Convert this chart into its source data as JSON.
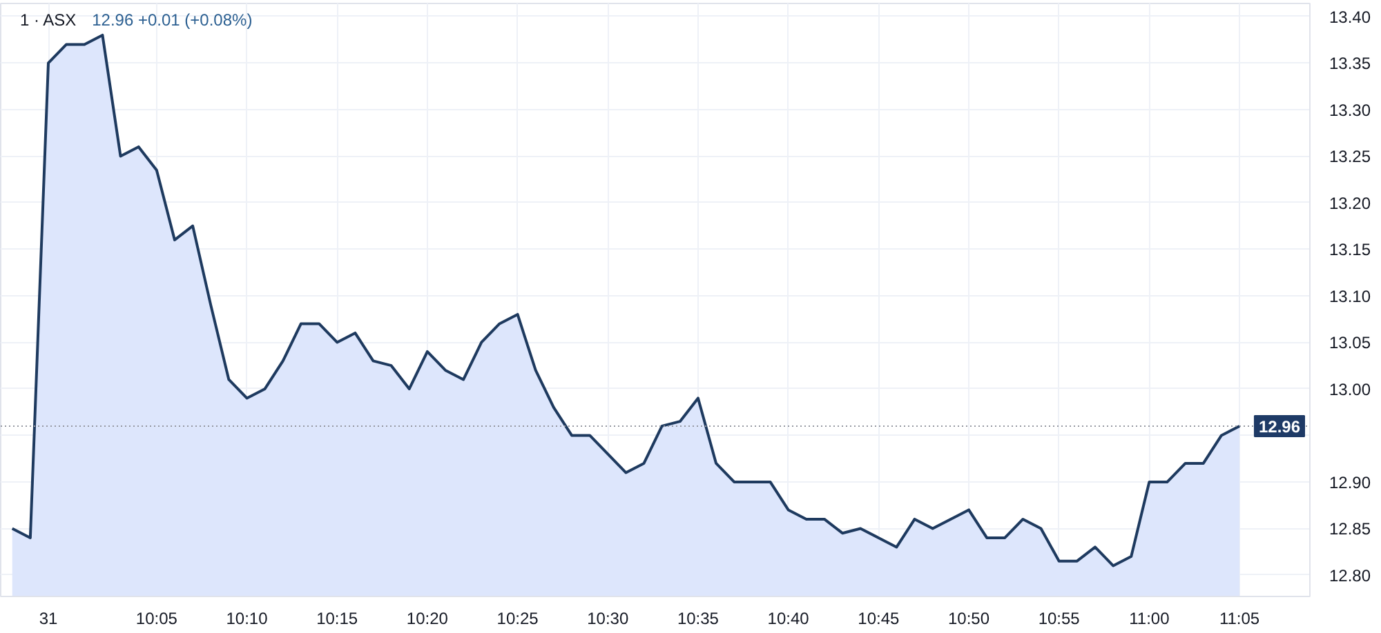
{
  "chart_data": {
    "type": "area",
    "title": "1 · ASX",
    "subtitle": "12.96  +0.01 (+0.08%)",
    "categories": [
      null,
      null,
      "31",
      null,
      null,
      null,
      null,
      null,
      "10:05",
      null,
      null,
      null,
      null,
      "10:10",
      null,
      null,
      null,
      null,
      "10:15",
      null,
      null,
      null,
      null,
      "10:20",
      null,
      null,
      null,
      null,
      "10:25",
      null,
      null,
      null,
      null,
      "10:30",
      null,
      null,
      null,
      null,
      "10:35",
      null,
      null,
      null,
      null,
      "10:40",
      null,
      null,
      null,
      null,
      "10:45",
      null,
      null,
      null,
      null,
      "10:50",
      null,
      null,
      null,
      null,
      "10:55",
      null,
      null,
      null,
      null,
      "11:00",
      null,
      null,
      null,
      null,
      "11:05"
    ],
    "series": [
      {
        "color": "#1e3a5f",
        "values": [
          12.85,
          12.84,
          13.35,
          13.37,
          13.37,
          13.38,
          13.25,
          13.26,
          13.235,
          13.16,
          13.175,
          13.09,
          13.01,
          12.99,
          13.0,
          13.03,
          13.07,
          13.07,
          13.05,
          13.06,
          13.03,
          13.025,
          13.0,
          13.04,
          13.02,
          13.01,
          13.05,
          13.07,
          13.08,
          13.02,
          12.98,
          12.95,
          12.95,
          12.93,
          12.91,
          12.92,
          12.96,
          12.965,
          12.99,
          12.92,
          12.9,
          12.9,
          12.9,
          12.87,
          12.86,
          12.86,
          12.845,
          12.85,
          12.84,
          12.83,
          12.86,
          12.85,
          12.86,
          12.87,
          12.84,
          12.84,
          12.86,
          12.85,
          12.815,
          12.815,
          12.83,
          12.81,
          12.82,
          12.9,
          12.9,
          12.92,
          12.92,
          12.95,
          12.96
        ]
      }
    ],
    "ylim": [
      12.777,
      13.414
    ],
    "yticks": [
      {
        "value": 12.8,
        "label": "12.80"
      },
      12.85,
      {
        "value": 12.9,
        "label": "12.90"
      },
      {
        "value": 12.95,
        "label": null
      },
      {
        "value": 13.0,
        "label": "13.00"
      },
      13.05,
      {
        "value": 13.1,
        "label": "13.10"
      },
      13.15,
      {
        "value": 13.2,
        "label": "13.20"
      },
      13.25,
      {
        "value": 13.3,
        "label": "13.30"
      },
      13.35,
      {
        "value": 13.4,
        "label": "13.40"
      }
    ],
    "grid": true,
    "ref_lines": [
      {
        "axis": "y",
        "value": 12.96,
        "label": "12.96",
        "color": "#9598a1",
        "line_style": "dotted"
      }
    ]
  }
}
